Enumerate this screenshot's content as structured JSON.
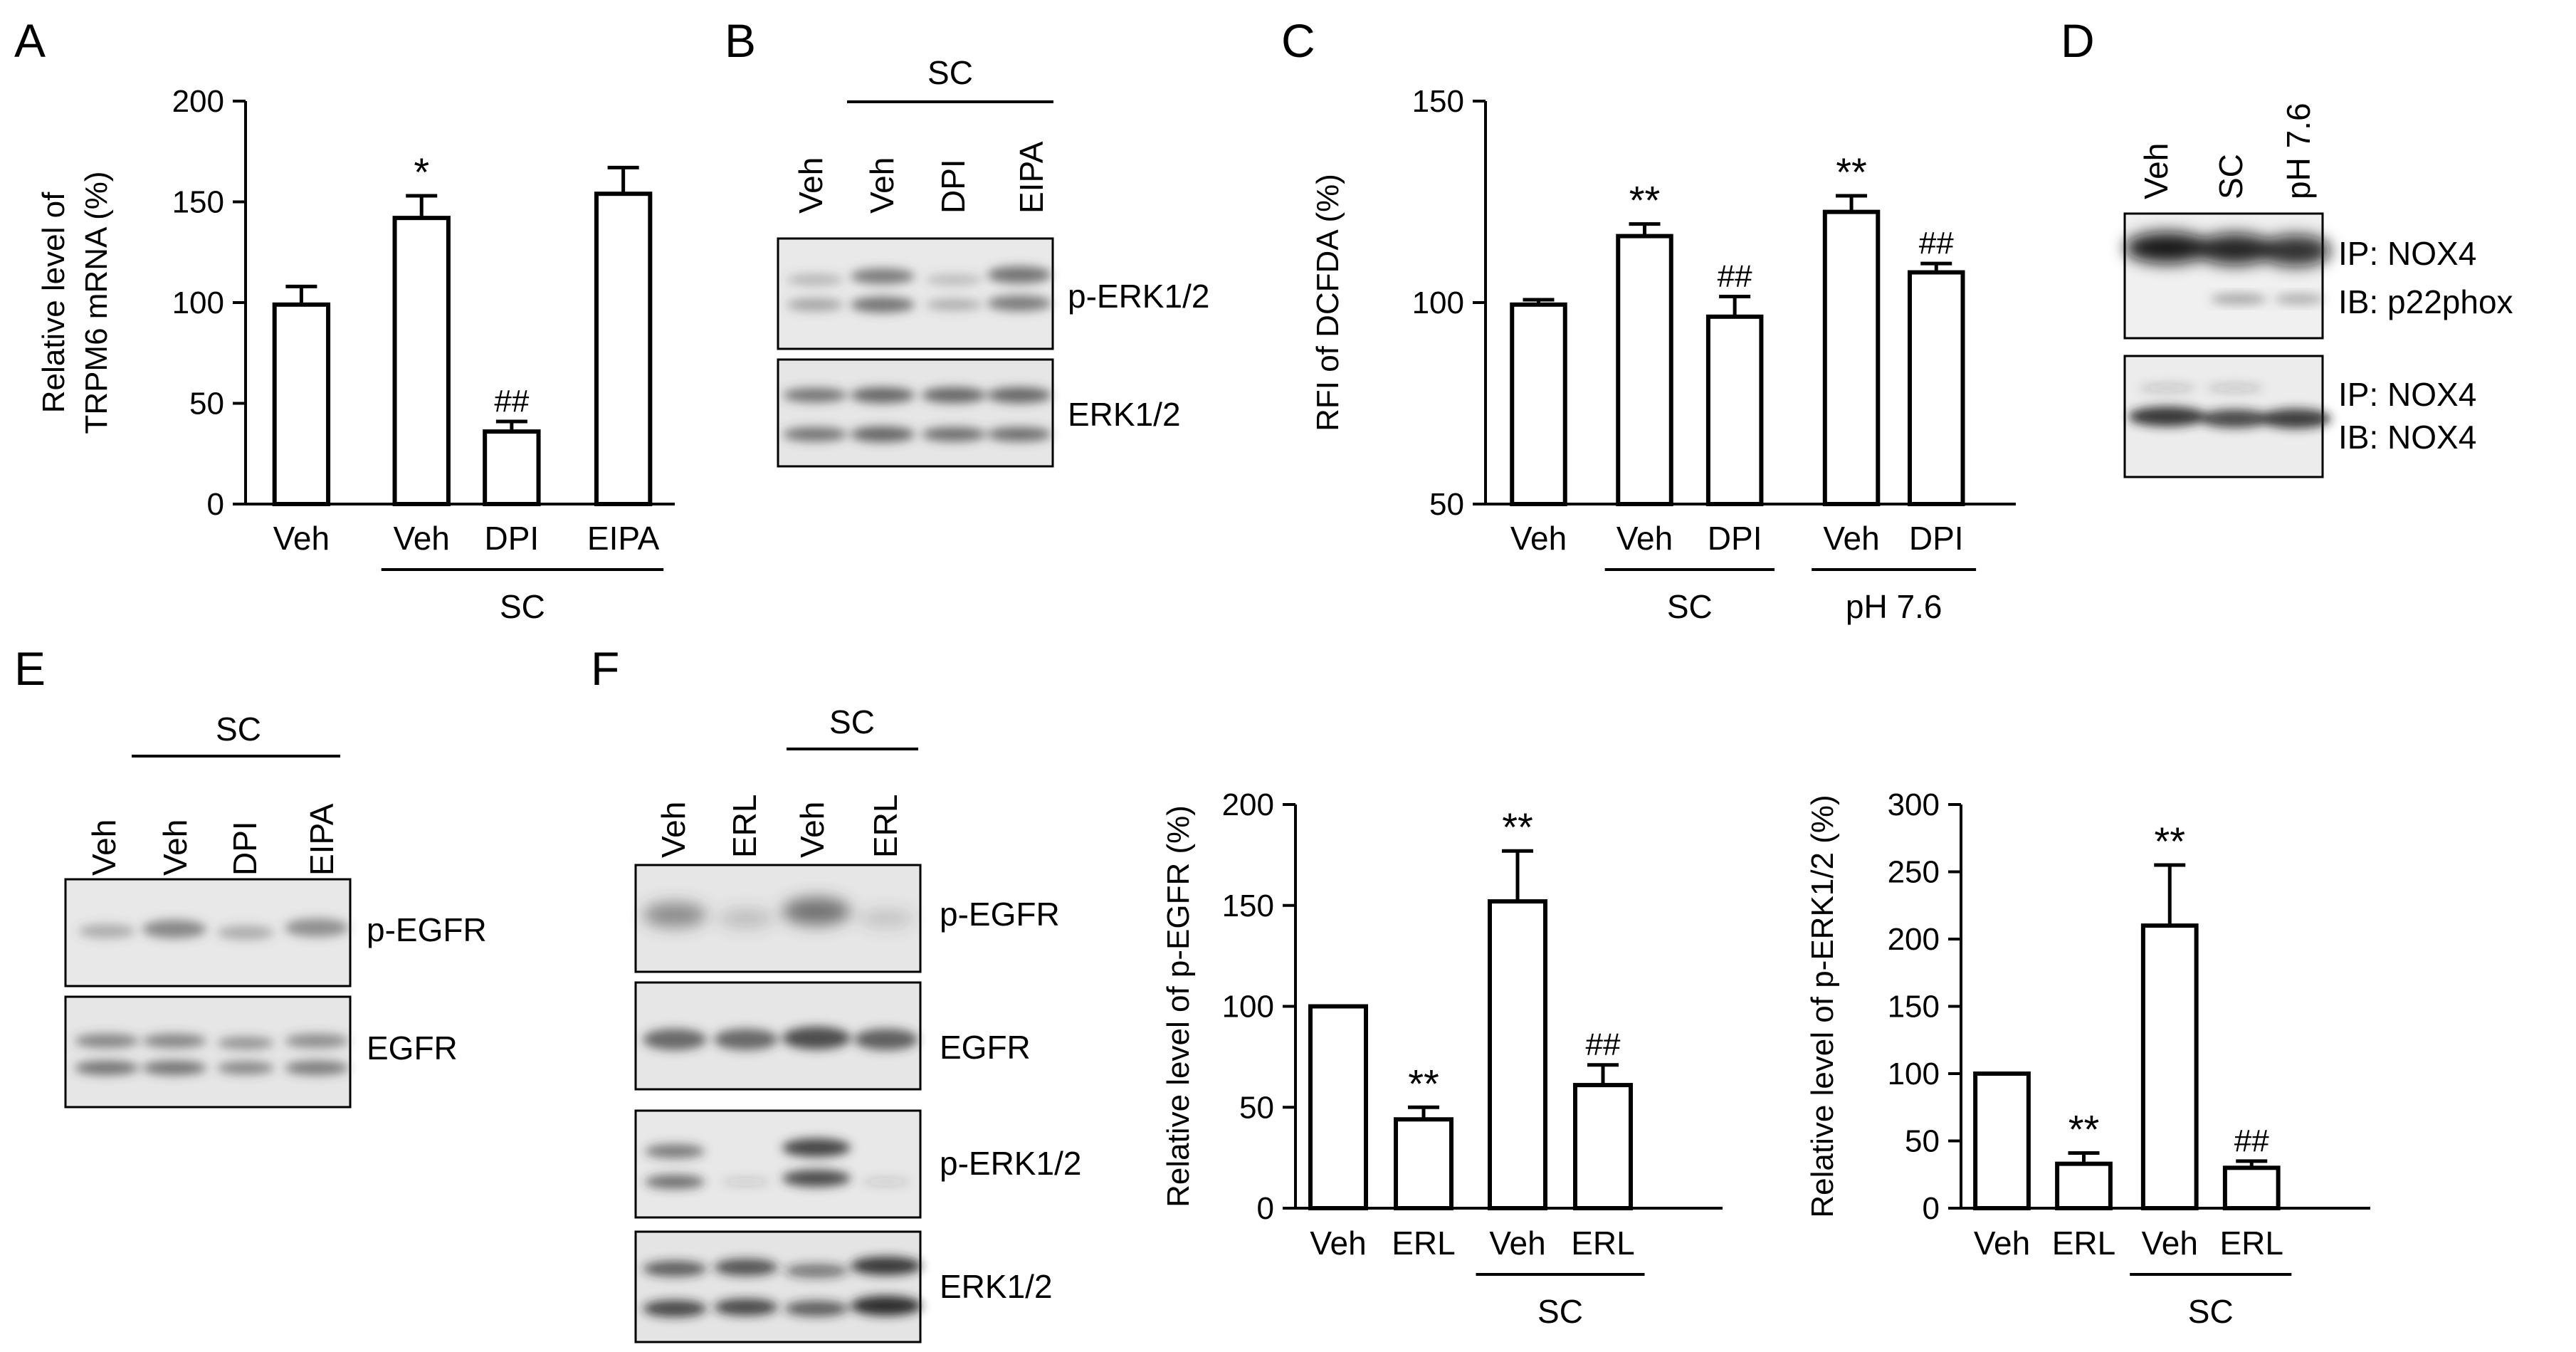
{
  "panels": {
    "A": {
      "label": "A"
    },
    "B": {
      "label": "B",
      "group": "SC",
      "lanes": [
        "Veh",
        "Veh",
        "DPI",
        "EIPA"
      ],
      "blots": [
        "p-ERK1/2",
        "ERK1/2"
      ]
    },
    "C": {
      "label": "C"
    },
    "D": {
      "label": "D",
      "lanes": [
        "Veh",
        "SC",
        "pH 7.6"
      ],
      "blots": [
        {
          "ip": "IP: NOX4",
          "ib": "IB: p22phox"
        },
        {
          "ip": "IP: NOX4",
          "ib": "IB: NOX4"
        }
      ]
    },
    "E": {
      "label": "E",
      "group": "SC",
      "lanes": [
        "Veh",
        "Veh",
        "DPI",
        "EIPA"
      ],
      "blots": [
        "p-EGFR",
        "EGFR"
      ]
    },
    "F": {
      "label": "F",
      "group": "SC",
      "lanes": [
        "Veh",
        "ERL",
        "Veh",
        "ERL"
      ],
      "blots": [
        "p-EGFR",
        "EGFR",
        "p-ERK1/2",
        "ERK1/2"
      ]
    }
  },
  "chart_data": [
    {
      "panel": "A",
      "type": "bar",
      "ylabel_lines": [
        "Relative level of",
        "TRPM6 mRNA  (%)"
      ],
      "ylim": [
        0,
        200
      ],
      "yticks": [
        0,
        50,
        100,
        150,
        200
      ],
      "categories": [
        "Veh",
        "Veh",
        "DPI",
        "EIPA"
      ],
      "values": [
        99,
        142,
        36,
        154
      ],
      "errors": [
        9,
        11,
        5,
        13
      ],
      "annotations": [
        "",
        "*",
        "##",
        ""
      ],
      "groups": [
        {
          "label": "SC",
          "from": 1,
          "to": 3
        }
      ]
    },
    {
      "panel": "C",
      "type": "bar",
      "ylabel_lines": [
        "RFI of DCFDA  (%)"
      ],
      "ylim": [
        50,
        150
      ],
      "yticks": [
        50,
        100,
        150
      ],
      "categories": [
        "Veh",
        "Veh",
        "DPI",
        "Veh",
        "DPI"
      ],
      "values": [
        99.5,
        116.5,
        96.5,
        122.5,
        107.5
      ],
      "errors": [
        1.2,
        3,
        5,
        4,
        2.2
      ],
      "annotations": [
        "",
        "**",
        "##",
        "**",
        "##"
      ],
      "groups": [
        {
          "label": "SC",
          "from": 1,
          "to": 2
        },
        {
          "label": "pH 7.6",
          "from": 3,
          "to": 4
        }
      ]
    },
    {
      "panel": "F1",
      "type": "bar",
      "ylabel_lines": [
        "Relative level of p-EGFR  (%)"
      ],
      "ylim": [
        0,
        200
      ],
      "yticks": [
        0,
        50,
        100,
        150,
        200
      ],
      "categories": [
        "Veh",
        "ERL",
        "Veh",
        "ERL"
      ],
      "values": [
        100,
        44,
        152,
        61
      ],
      "errors": [
        0,
        6,
        25,
        10
      ],
      "annotations": [
        "",
        "**",
        "**",
        "##"
      ],
      "groups": [
        {
          "label": "SC",
          "from": 2,
          "to": 3
        }
      ]
    },
    {
      "panel": "F2",
      "type": "bar",
      "ylabel_lines": [
        "Relative level of p-ERK1/2  (%)"
      ],
      "ylim": [
        0,
        300
      ],
      "yticks": [
        0,
        50,
        100,
        150,
        200,
        250,
        300
      ],
      "categories": [
        "Veh",
        "ERL",
        "Veh",
        "ERL"
      ],
      "values": [
        100,
        33,
        210,
        30
      ],
      "errors": [
        0,
        8,
        45,
        5
      ],
      "annotations": [
        "",
        "**",
        "**",
        "##"
      ],
      "groups": [
        {
          "label": "SC",
          "from": 2,
          "to": 3
        }
      ]
    }
  ]
}
